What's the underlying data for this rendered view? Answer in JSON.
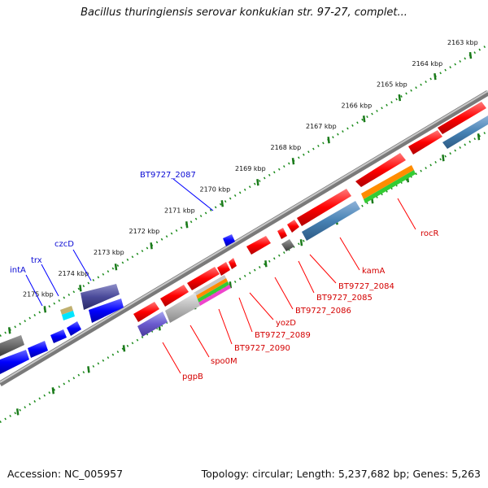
{
  "title": "Bacillus thuringiensis serovar konkukian str. 97-27, complet...",
  "footer": {
    "accession": "Accession: NC_005957",
    "summary": "Topology: circular; Length: 5,237,682 bp; Genes: 5,263"
  },
  "scale_labels": [
    "2163 kbp",
    "2164 kbp",
    "2165 kbp",
    "2166 kbp",
    "2167 kbp",
    "2168 kbp",
    "2169 kbp",
    "2170 kbp",
    "2171 kbp",
    "2172 kbp",
    "2173 kbp",
    "2174 kbp",
    "2175 kbp"
  ],
  "gene_labels_top": [
    "BT9727_2087",
    "czcD",
    "trx",
    "intA"
  ],
  "gene_labels_bottom": [
    "rocR",
    "kamA",
    "BT9727_2084",
    "BT9727_2085",
    "BT9727_2086",
    "yozD",
    "BT9727_2089",
    "BT9727_2090",
    "spo0M",
    "pgpB"
  ],
  "colors": {
    "forward_gene": "#ff0000",
    "reverse_gene": "#0000ff",
    "backbone": "#8a8a8a",
    "tick": "#1a7a1a",
    "label_red": "#d40000",
    "label_blue": "#0a0ad4"
  }
}
